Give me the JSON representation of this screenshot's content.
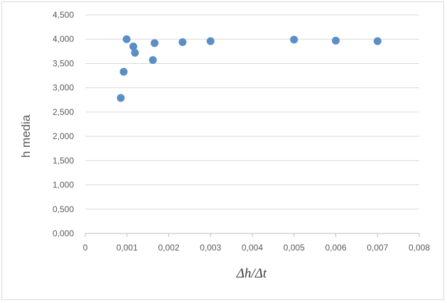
{
  "chart_data": {
    "type": "scatter",
    "title": "",
    "xlabel": "Δh/Δt",
    "ylabel": "h media",
    "xlim": [
      0,
      0.008
    ],
    "ylim": [
      0,
      4.5
    ],
    "x_ticks": [
      "0",
      "0,001",
      "0,002",
      "0,003",
      "0,004",
      "0,005",
      "0,006",
      "0,007",
      "0,008"
    ],
    "y_ticks": [
      "0,000",
      "0,500",
      "1,000",
      "1,500",
      "2,000",
      "2,500",
      "3,000",
      "3,500",
      "4,000",
      "4,500"
    ],
    "grid": "horizontal",
    "legend": "none",
    "marker_color": "#5b8ec5",
    "series": [
      {
        "points": [
          {
            "x": 0.00085,
            "y": 2.79
          },
          {
            "x": 0.00092,
            "y": 3.33
          },
          {
            "x": 0.00099,
            "y": 4.0
          },
          {
            "x": 0.00115,
            "y": 3.85
          },
          {
            "x": 0.00119,
            "y": 3.72
          },
          {
            "x": 0.00162,
            "y": 3.57
          },
          {
            "x": 0.00166,
            "y": 3.92
          },
          {
            "x": 0.00233,
            "y": 3.94
          },
          {
            "x": 0.003,
            "y": 3.96
          },
          {
            "x": 0.005,
            "y": 3.99
          },
          {
            "x": 0.006,
            "y": 3.97
          },
          {
            "x": 0.007,
            "y": 3.96
          }
        ]
      }
    ]
  }
}
